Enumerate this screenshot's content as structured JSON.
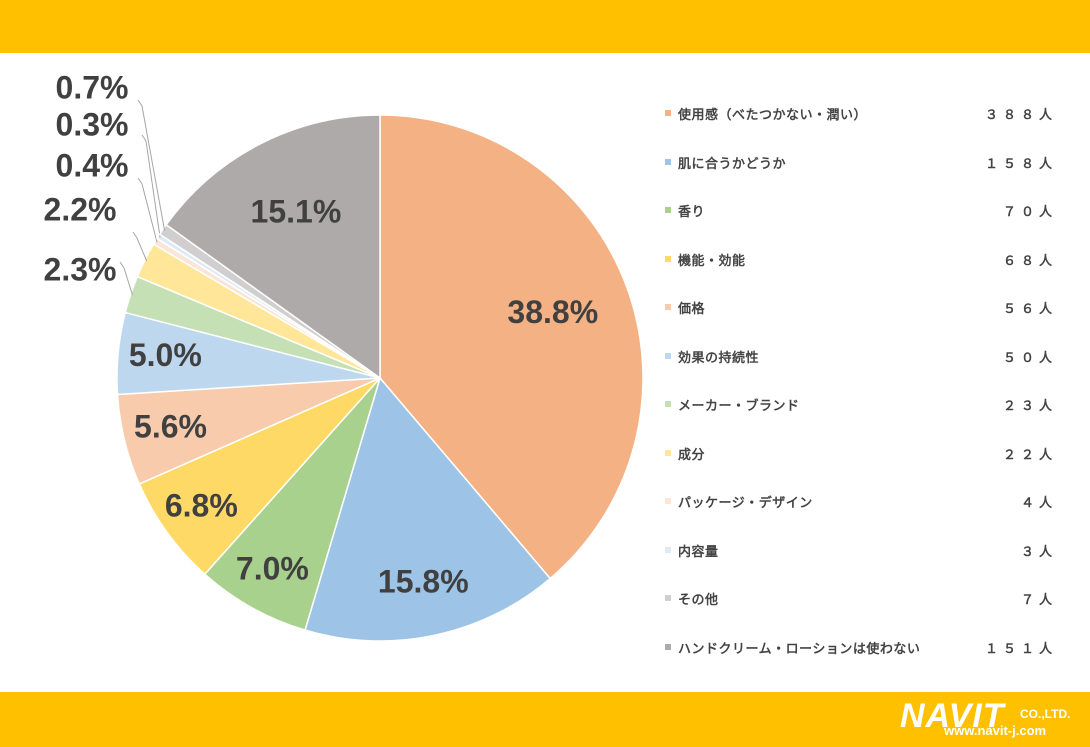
{
  "chart_data": {
    "type": "pie",
    "slices": [
      {
        "label": "使用感（べたつかない・潤い）",
        "count": "３８８人",
        "value": 38.8,
        "pct_label": "38.8%",
        "color": "#F4B183"
      },
      {
        "label": "肌に合うかどうか",
        "count": "１５８人",
        "value": 15.8,
        "pct_label": "15.8%",
        "color": "#9DC3E6"
      },
      {
        "label": "香り",
        "count": "７０人",
        "value": 7.0,
        "pct_label": "7.0%",
        "color": "#A9D18E"
      },
      {
        "label": "機能・効能",
        "count": "６８人",
        "value": 6.8,
        "pct_label": "6.8%",
        "color": "#FFD966"
      },
      {
        "label": "価格",
        "count": "５６人",
        "value": 5.6,
        "pct_label": "5.6%",
        "color": "#F8CBAD"
      },
      {
        "label": "効果の持続性",
        "count": "５０人",
        "value": 5.0,
        "pct_label": "5.0%",
        "color": "#BDD7EE"
      },
      {
        "label": "メーカー・ブランド",
        "count": "２３人",
        "value": 2.3,
        "pct_label": "2.3%",
        "color": "#C5E0B4"
      },
      {
        "label": "成分",
        "count": "２２人",
        "value": 2.2,
        "pct_label": "2.2%",
        "color": "#FFE699"
      },
      {
        "label": "パッケージ・デザイン",
        "count": "４人",
        "value": 0.4,
        "pct_label": "0.4%",
        "color": "#FBE5D6"
      },
      {
        "label": "内容量",
        "count": "３人",
        "value": 0.3,
        "pct_label": "0.3%",
        "color": "#DEEBF7"
      },
      {
        "label": "その他",
        "count": "７人",
        "value": 0.7,
        "pct_label": "0.7%",
        "color": "#D0CECE"
      },
      {
        "label": "ハンドクリーム・ローションは使わない",
        "count": "１５１人",
        "value": 15.1,
        "pct_label": "15.1%",
        "color": "#AEAAAA"
      }
    ],
    "legend_position": "right"
  },
  "logo": {
    "brand": "NAVIT",
    "suffix": "CO.,LTD.",
    "url": "www.navit-j.com"
  },
  "colors": {
    "band": "#FFC000",
    "label_text": "#404040"
  }
}
